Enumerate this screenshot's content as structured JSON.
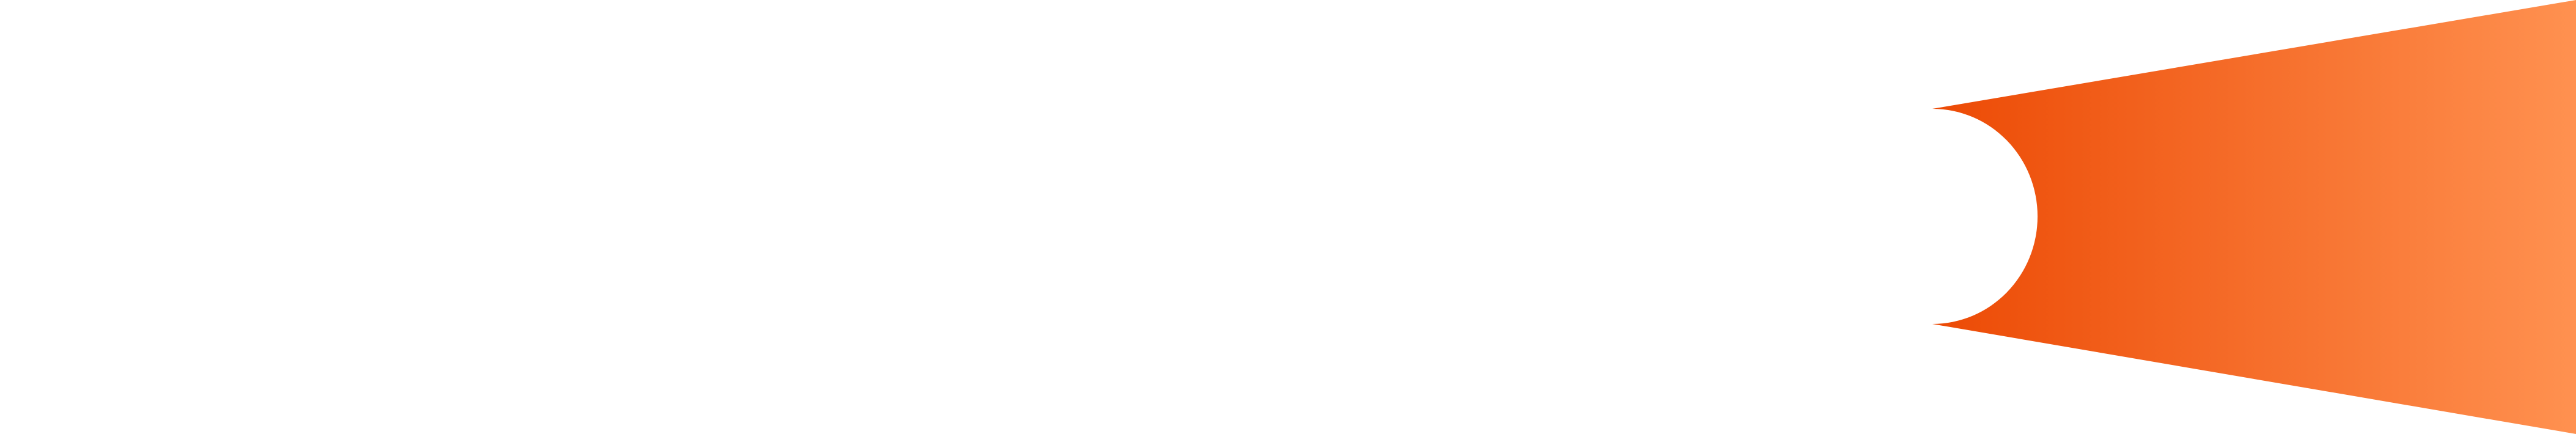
{
  "graphic": {
    "name": "orange-gradient-wedge-shape",
    "gradient_start_color": "#ec4a05",
    "gradient_end_color": "#ff9150",
    "background_color": "#ffffff"
  }
}
